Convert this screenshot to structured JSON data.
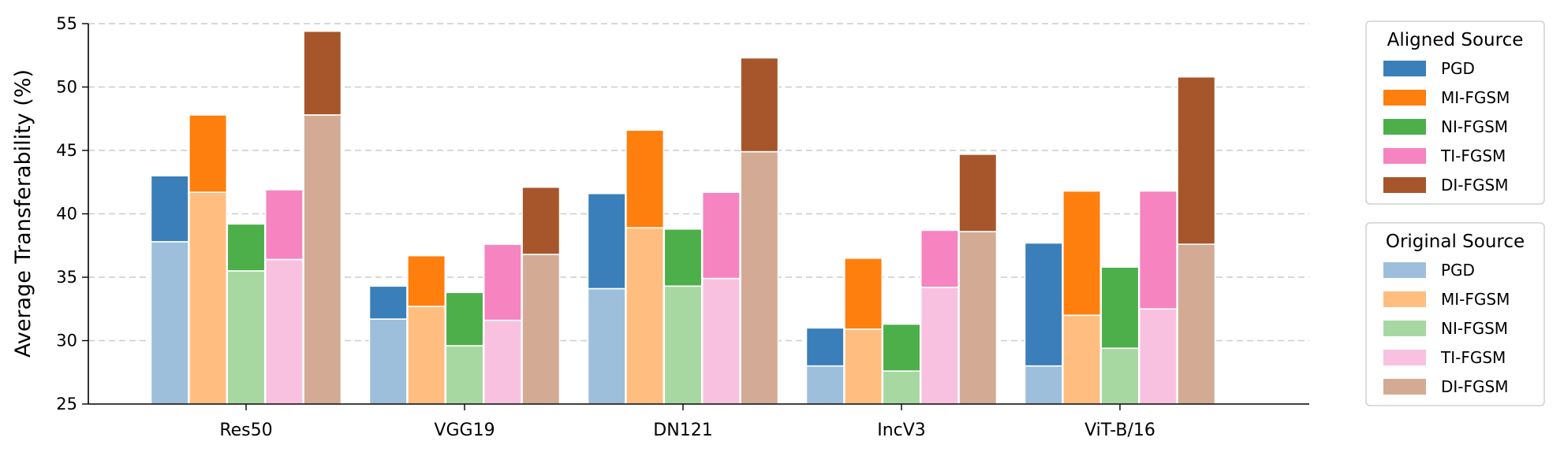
{
  "chart_data": {
    "type": "bar",
    "ylabel": "Average Transferability (%)",
    "xlabel": "",
    "ylim": [
      25,
      55
    ],
    "yticks": [
      "25",
      "30",
      "35",
      "40",
      "45",
      "50",
      "55"
    ],
    "grid": "horizontal dashed",
    "categories": [
      "Res50",
      "VGG19",
      "DN121",
      "IncV3",
      "ViT-B/16"
    ],
    "series": [
      {
        "name": "PGD",
        "original": [
          37.8,
          31.7,
          34.1,
          28.0,
          28.0
        ],
        "aligned": [
          43.0,
          34.3,
          41.6,
          31.0,
          37.7
        ]
      },
      {
        "name": "MI-FGSM",
        "original": [
          41.7,
          32.7,
          38.9,
          30.9,
          32.0
        ],
        "aligned": [
          47.8,
          36.7,
          46.6,
          36.5,
          41.8
        ]
      },
      {
        "name": "NI-FGSM",
        "original": [
          35.5,
          29.6,
          34.3,
          27.6,
          29.4
        ],
        "aligned": [
          39.2,
          33.8,
          38.8,
          31.3,
          35.8
        ]
      },
      {
        "name": "TI-FGSM",
        "original": [
          36.4,
          31.6,
          34.9,
          34.2,
          32.5
        ],
        "aligned": [
          41.9,
          37.6,
          41.7,
          38.7,
          41.8
        ]
      },
      {
        "name": "DI-FGSM",
        "original": [
          47.8,
          36.8,
          44.9,
          38.6,
          37.6
        ],
        "aligned": [
          54.4,
          42.1,
          52.3,
          44.7,
          50.8
        ]
      }
    ],
    "legends": [
      {
        "title": "Aligned Source",
        "entries": [
          "PGD",
          "MI-FGSM",
          "NI-FGSM",
          "TI-FGSM",
          "DI-FGSM"
        ],
        "colors": [
          "#3a7fba",
          "#ff7f0e",
          "#4caf4a",
          "#f584c0",
          "#a6562a"
        ]
      },
      {
        "title": "Original Source",
        "entries": [
          "PGD",
          "MI-FGSM",
          "NI-FGSM",
          "TI-FGSM",
          "DI-FGSM"
        ],
        "colors": [
          "#9ebfdc",
          "#ffbe80",
          "#a8d8a2",
          "#f9c1e0",
          "#d3ab94"
        ]
      }
    ],
    "legend_position": "right"
  }
}
